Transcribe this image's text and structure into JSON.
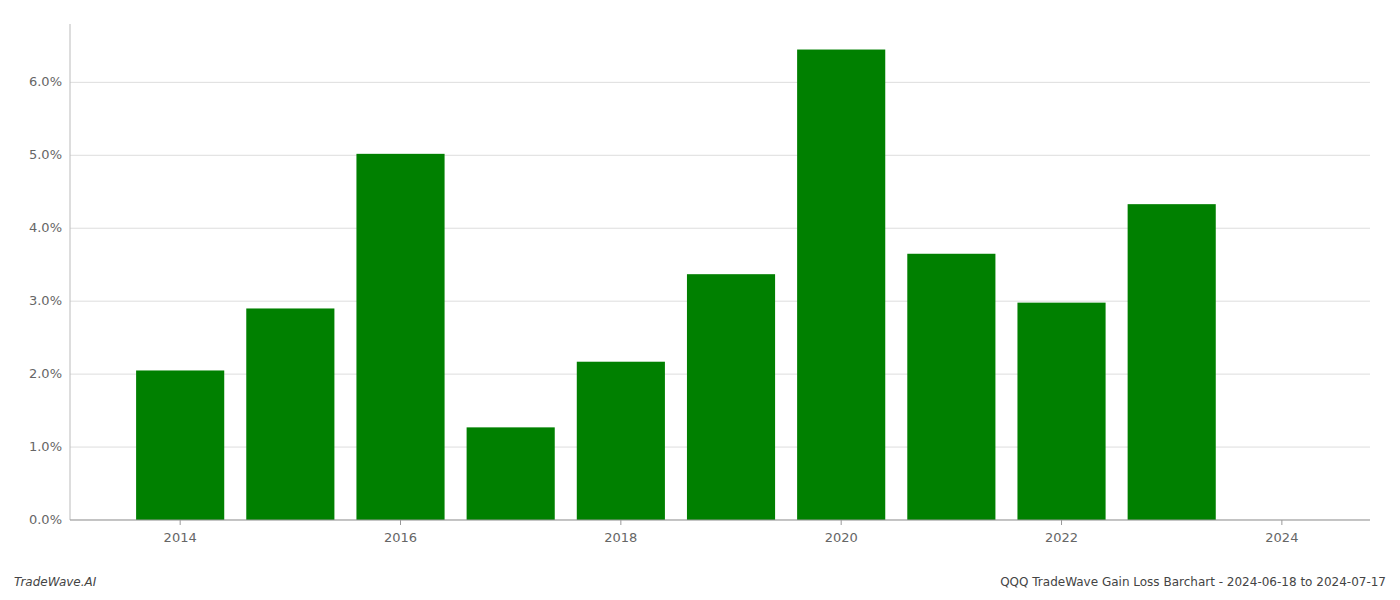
{
  "chart_data": {
    "type": "bar",
    "title": "QQQ TradeWave Gain Loss Barchart - 2024-06-18 to 2024-07-17",
    "annotations": [
      "TradeWave.AI"
    ],
    "x": [
      2014,
      2015,
      2016,
      2017,
      2018,
      2019,
      2020,
      2021,
      2022,
      2023
    ],
    "values": [
      0.0205,
      0.029,
      0.0502,
      0.0127,
      0.0217,
      0.0337,
      0.0645,
      0.0365,
      0.0298,
      0.0433
    ],
    "color": "#008000",
    "xlim": [
      2013.0,
      2024.8
    ],
    "xticks": [
      2014,
      2016,
      2018,
      2020,
      2022,
      2024
    ],
    "ylim": [
      0,
      0.068
    ],
    "yticks": [
      {
        "value": 0.0,
        "label": "0.0%"
      },
      {
        "value": 0.01,
        "label": "1.0%"
      },
      {
        "value": 0.02,
        "label": "2.0%"
      },
      {
        "value": 0.03,
        "label": "3.0%"
      },
      {
        "value": 0.04,
        "label": "4.0%"
      },
      {
        "value": 0.05,
        "label": "5.0%"
      },
      {
        "value": 0.06,
        "label": "6.0%"
      }
    ],
    "grid": true
  }
}
